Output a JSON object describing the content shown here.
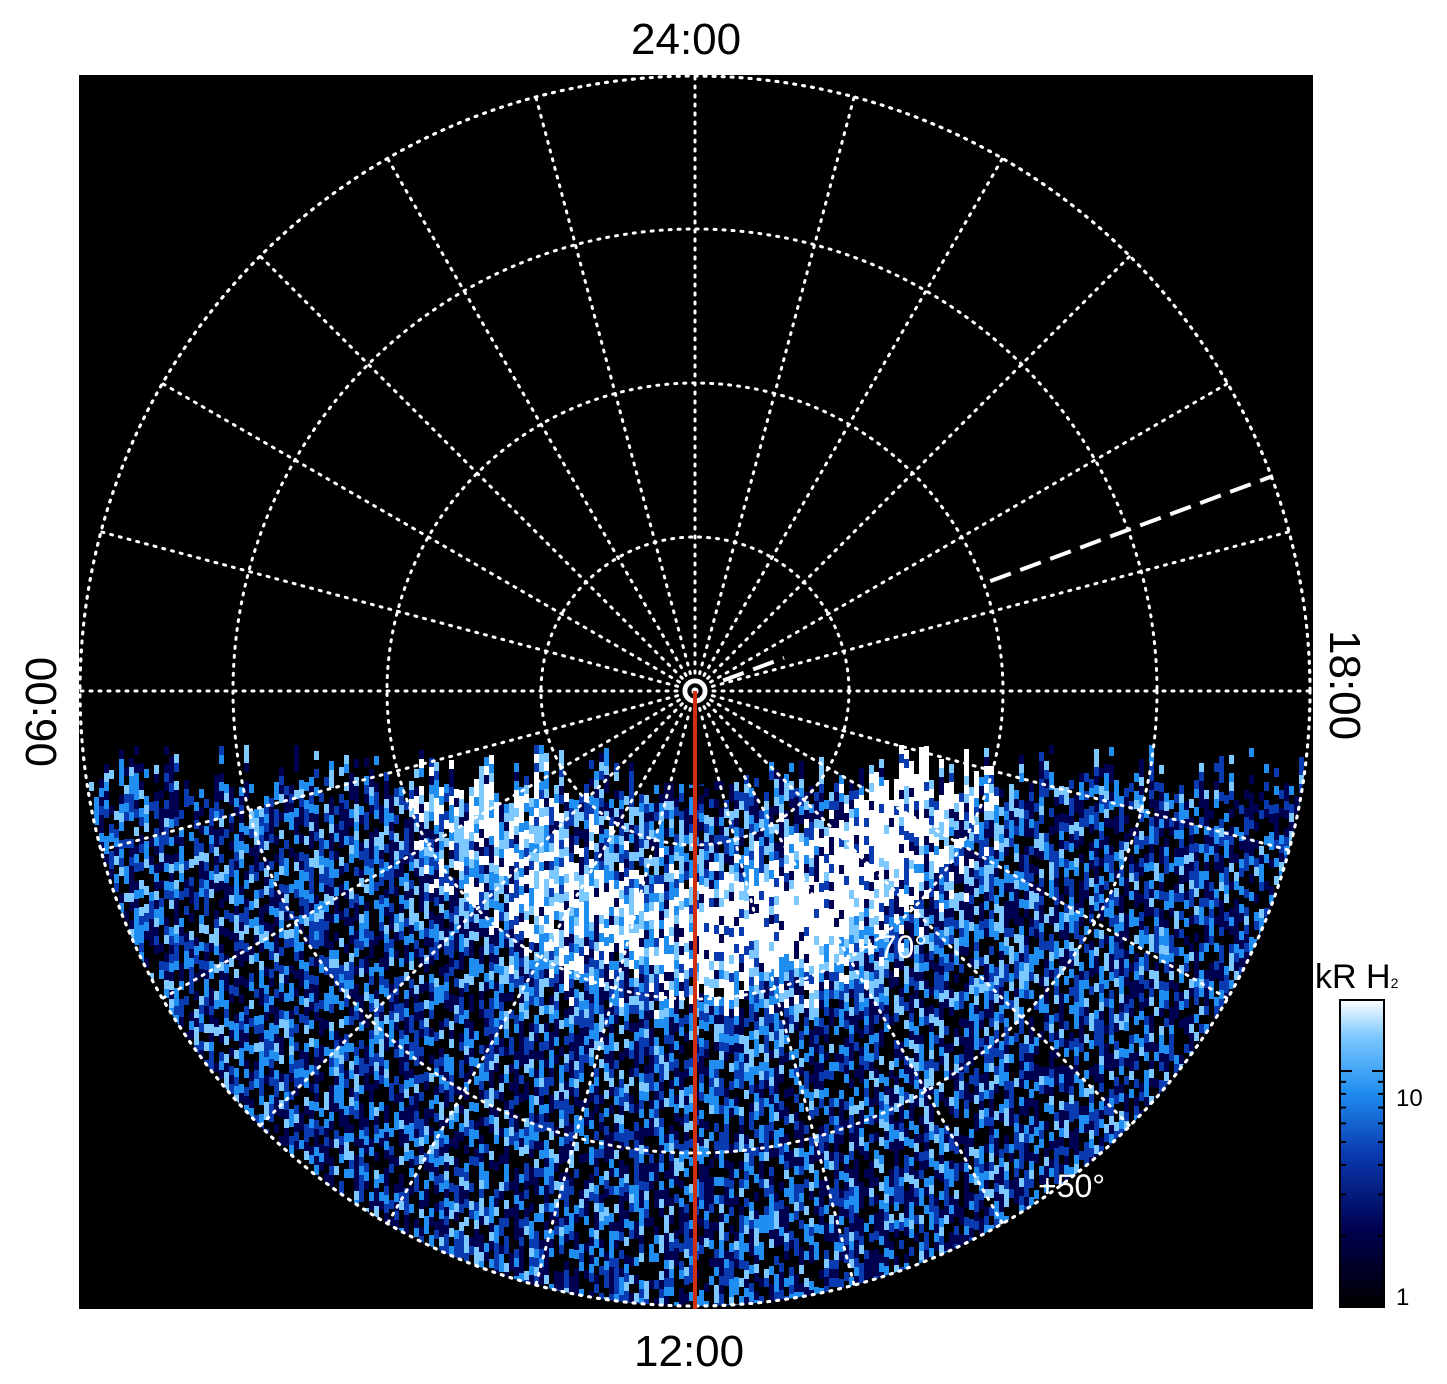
{
  "local_time_labels": {
    "top": "24:00",
    "bottom": "12:00",
    "left": "06:00",
    "right": "18:00"
  },
  "latitude_labels": {
    "inner": "+70°",
    "outer": "+50°"
  },
  "colorbar": {
    "unit": "kR H",
    "unit_subscript": "2",
    "ticks": [
      "10",
      "1"
    ],
    "range": [
      1,
      20
    ],
    "scale": "log"
  },
  "colors": {
    "background": "#000000",
    "grid": "#ffffff",
    "reference_line": "#d03010",
    "colormap": [
      "#000000",
      "#000050",
      "#0a3ab0",
      "#1f8ef0",
      "#7cc8ff",
      "#ffffff"
    ]
  }
}
